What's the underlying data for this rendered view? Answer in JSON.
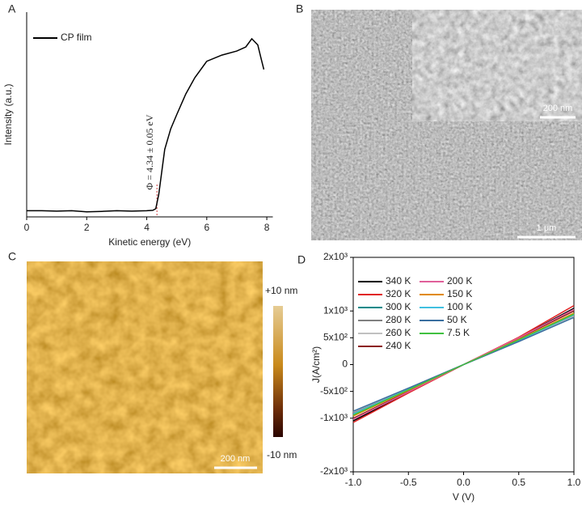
{
  "panels": {
    "labels": [
      "A",
      "B",
      "C",
      "D"
    ]
  },
  "sem": {
    "scale_bar": "1 μm",
    "inset_scale_bar": "200 nm"
  },
  "afm": {
    "scale_bar": "200 nm",
    "colorbar_max": "+10 nm",
    "colorbar_min": "-10 nm"
  },
  "chart_data": [
    {
      "type": "line",
      "xlabel": "Kinetic energy (eV)",
      "ylabel": "Intensity (a.u.)",
      "xlim": [
        0,
        8.2
      ],
      "ylim": [
        0,
        1
      ],
      "xticks": [
        0,
        2,
        4,
        6,
        8
      ],
      "legend": "upper left",
      "annotation": {
        "text": "Φ = 4.34 ± 0.05 eV",
        "x": 4.34,
        "color": "#d04040"
      },
      "series": [
        {
          "name": "CP film",
          "color": "#000000",
          "x": [
            0,
            0.5,
            1,
            1.5,
            2,
            2.5,
            3,
            3.5,
            4,
            4.2,
            4.3,
            4.4,
            4.5,
            4.6,
            4.8,
            5,
            5.3,
            5.6,
            6,
            6.5,
            7,
            7.3,
            7.5,
            7.7,
            7.8,
            7.9
          ],
          "values": [
            0.03,
            0.03,
            0.028,
            0.03,
            0.025,
            0.027,
            0.03,
            0.028,
            0.03,
            0.032,
            0.04,
            0.11,
            0.22,
            0.33,
            0.43,
            0.5,
            0.6,
            0.68,
            0.76,
            0.79,
            0.81,
            0.83,
            0.87,
            0.84,
            0.78,
            0.72
          ]
        }
      ]
    },
    {
      "type": "line",
      "xlabel": "V (V)",
      "ylabel": "J(A/cm²)",
      "xlim": [
        -1,
        1
      ],
      "ylim": [
        -2000,
        2000
      ],
      "xticks": [
        {
          "value": -1,
          "label": "-1.0"
        },
        -0.5,
        {
          "value": 0,
          "label": "0.0"
        },
        0.5,
        {
          "value": 1,
          "label": "1.0"
        }
      ],
      "yticks": [
        {
          "value": -2000,
          "label": "-2x10³"
        },
        {
          "value": -1000,
          "label": "-1x10³"
        },
        {
          "value": -500,
          "label": "-5x10²"
        },
        0,
        {
          "value": 500,
          "label": "5x10²"
        },
        {
          "value": 1000,
          "label": "1x10³"
        },
        {
          "value": 2000,
          "label": "2x10³"
        }
      ],
      "legend": "upper left",
      "x": [
        -1,
        -0.5,
        0,
        0.5,
        1
      ],
      "series": [
        {
          "name": "340 K",
          "color": "#000000",
          "values": [
            -1050,
            -520,
            0,
            500,
            1050
          ]
        },
        {
          "name": "320 K",
          "color": "#e02020",
          "values": [
            -1080,
            -530,
            0,
            510,
            1100
          ]
        },
        {
          "name": "300 K",
          "color": "#008a8a",
          "values": [
            -950,
            -470,
            0,
            460,
            950
          ]
        },
        {
          "name": "280 K",
          "color": "#808080",
          "values": [
            -900,
            -450,
            0,
            440,
            920
          ]
        },
        {
          "name": "260 K",
          "color": "#c0c0c0",
          "values": [
            -880,
            -440,
            0,
            430,
            900
          ]
        },
        {
          "name": "240 K",
          "color": "#8b1a1a",
          "values": [
            -1000,
            -500,
            0,
            490,
            1000
          ]
        },
        {
          "name": "200 K",
          "color": "#e0609a",
          "values": [
            -1020,
            -510,
            0,
            500,
            1030
          ]
        },
        {
          "name": "150 K",
          "color": "#e08a00",
          "values": [
            -960,
            -480,
            0,
            470,
            960
          ]
        },
        {
          "name": "100 K",
          "color": "#40c0e0",
          "values": [
            -920,
            -460,
            0,
            450,
            930
          ]
        },
        {
          "name": "50 K",
          "color": "#3a6fa0",
          "values": [
            -870,
            -440,
            0,
            430,
            880
          ]
        },
        {
          "name": "7.5 K",
          "color": "#40c040",
          "values": [
            -940,
            -470,
            0,
            460,
            940
          ]
        }
      ]
    }
  ]
}
